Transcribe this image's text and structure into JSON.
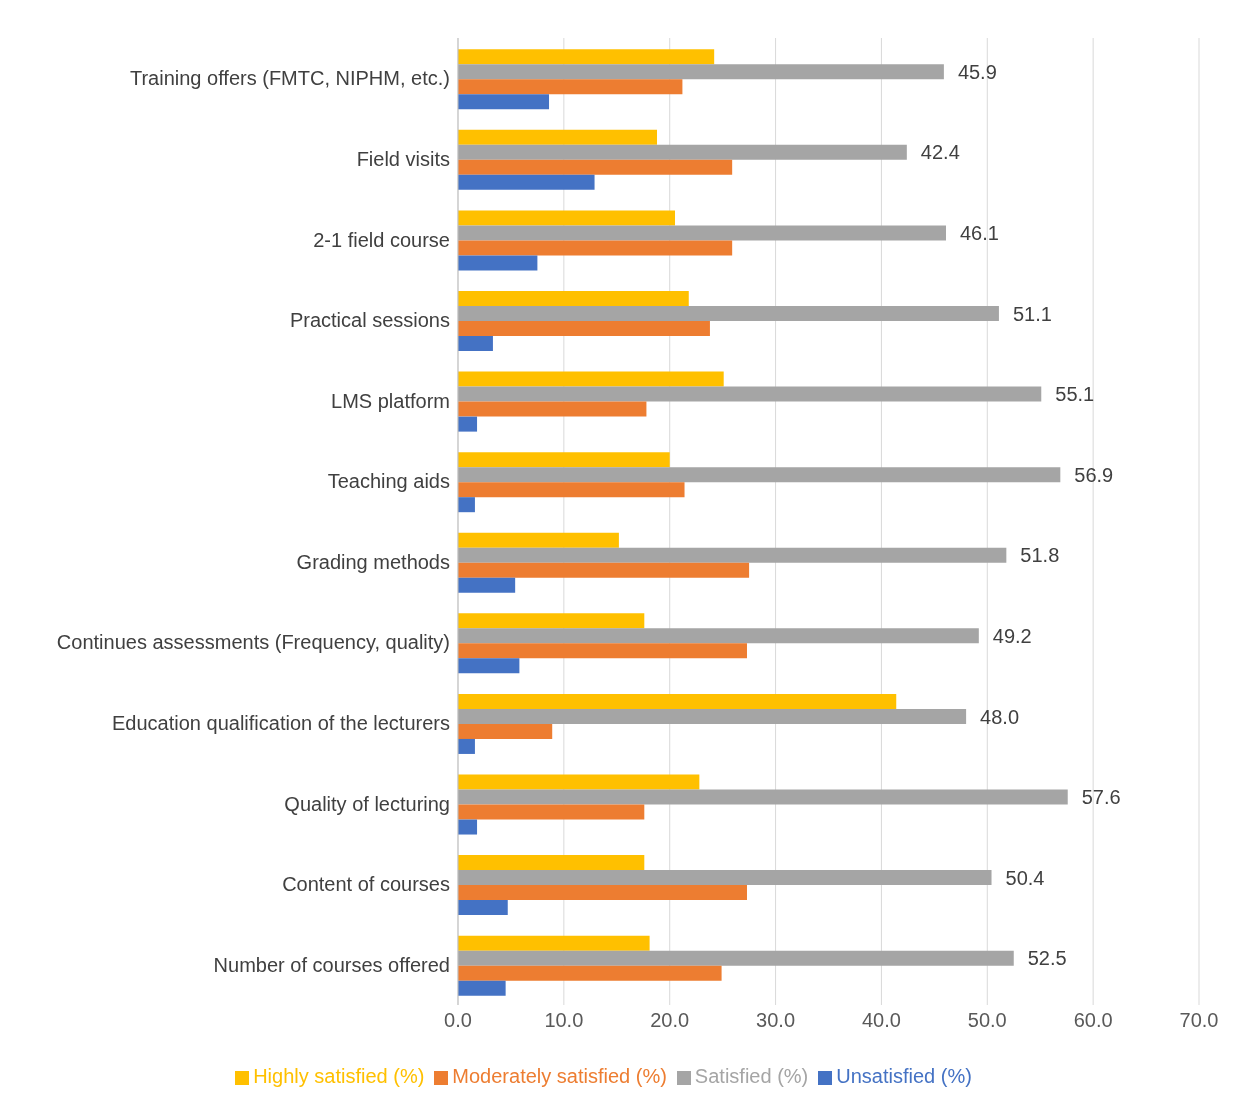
{
  "chart_data": {
    "type": "bar",
    "orientation": "horizontal",
    "categories": [
      "Training offers (FMTC, NIPHM, etc.)",
      "Field visits",
      "2-1 field course",
      "Practical sessions",
      "LMS platform",
      "Teaching aids",
      "Grading methods",
      "Continues assessments (Frequency, quality)",
      "Education qualification of the lecturers",
      "Quality of lecturing",
      "Content of courses",
      "Number of courses offered"
    ],
    "series": [
      {
        "name": "Highly satisfied (%)",
        "color": "#ffc000",
        "values": [
          24.2,
          18.8,
          20.5,
          21.8,
          25.1,
          20.0,
          15.2,
          17.6,
          41.4,
          22.8,
          17.6,
          18.1
        ]
      },
      {
        "name": "Satisfied (%)",
        "color": "#a5a5a5",
        "values": [
          45.9,
          42.4,
          46.1,
          51.1,
          55.1,
          56.9,
          51.8,
          49.2,
          48.0,
          57.6,
          50.4,
          52.5
        ],
        "value_labels": [
          "45.9",
          "42.4",
          "46.1",
          "51.1",
          "55.1",
          "56.9",
          "51.8",
          "49.2",
          "48.0",
          "57.6",
          "50.4",
          "52.5"
        ]
      },
      {
        "name": "Moderately satisfied (%)",
        "color": "#ed7d31",
        "values": [
          21.2,
          25.9,
          25.9,
          23.8,
          17.8,
          21.4,
          27.5,
          27.3,
          8.9,
          17.6,
          27.3,
          24.9
        ]
      },
      {
        "name": "Unsatisfied (%)",
        "color": "#4472c4",
        "values": [
          8.6,
          12.9,
          7.5,
          3.3,
          1.8,
          1.6,
          5.4,
          5.8,
          1.6,
          1.8,
          4.7,
          4.5
        ]
      }
    ],
    "xlim": [
      0,
      70
    ],
    "xticks": [
      {
        "value": 0,
        "label": "0.0"
      },
      {
        "value": 10,
        "label": "10.0"
      },
      {
        "value": 20,
        "label": "20.0"
      },
      {
        "value": 30,
        "label": "30.0"
      },
      {
        "value": 40,
        "label": "40.0"
      },
      {
        "value": 50,
        "label": "50.0"
      },
      {
        "value": 60,
        "label": "60.0"
      },
      {
        "value": 70,
        "label": "70.0"
      }
    ],
    "grid": "x",
    "legend": "bottom"
  }
}
